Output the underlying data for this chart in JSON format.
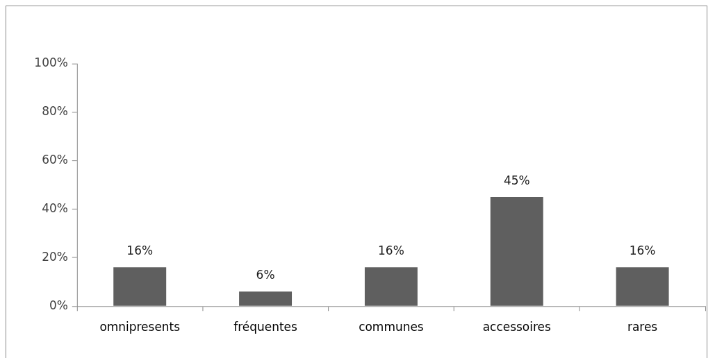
{
  "chart_data": {
    "type": "bar",
    "categories": [
      "omnipresents",
      "fréquentes",
      "communes",
      "accessoires",
      "rares"
    ],
    "values": [
      16,
      6,
      16,
      45,
      16
    ],
    "color": "#5f5f5f",
    "value_labels": [
      "16%",
      "6%",
      "16%",
      "45%",
      "16%"
    ],
    "ylim": [
      0,
      100
    ],
    "yticks": [
      {
        "value": 0,
        "label": "0%"
      },
      {
        "value": 20,
        "label": "20%"
      },
      {
        "value": 40,
        "label": "40%"
      },
      {
        "value": 60,
        "label": "60%"
      },
      {
        "value": 80,
        "label": "80%"
      },
      {
        "value": 100,
        "label": "100%"
      }
    ]
  }
}
